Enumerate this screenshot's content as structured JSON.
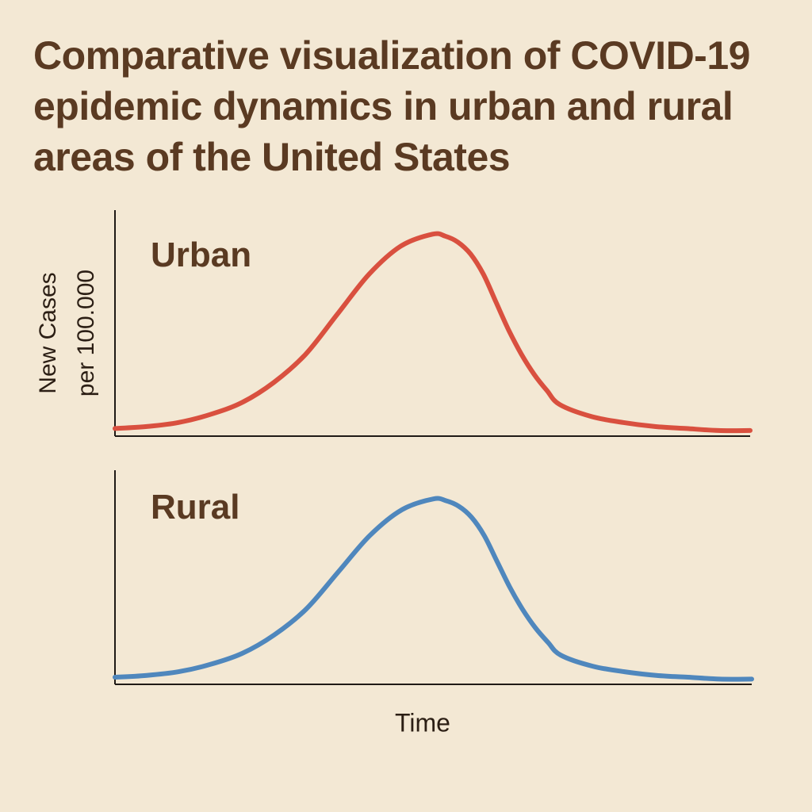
{
  "chart_data": {
    "type": "line",
    "title": "Comparative visualization of COVID-19 epidemic dynamics in urban and rural areas of the United States",
    "ylabel": "New Cases\nper 100.000",
    "xlabel": "Time",
    "ticks": "none",
    "grid": false,
    "panels": [
      {
        "name": "Urban",
        "color": "#d9503f",
        "x": [
          0,
          0.05,
          0.1,
          0.15,
          0.2,
          0.25,
          0.3,
          0.35,
          0.4,
          0.45,
          0.5,
          0.52,
          0.54,
          0.56,
          0.58,
          0.6,
          0.62,
          0.64,
          0.66,
          0.68,
          0.7,
          0.75,
          0.8,
          0.85,
          0.9,
          0.95,
          1.0
        ],
        "y": [
          0.03,
          0.04,
          0.06,
          0.1,
          0.16,
          0.26,
          0.4,
          0.6,
          0.8,
          0.94,
          1.0,
          0.99,
          0.96,
          0.9,
          0.8,
          0.66,
          0.52,
          0.4,
          0.3,
          0.22,
          0.15,
          0.09,
          0.06,
          0.04,
          0.03,
          0.02,
          0.02
        ],
        "ylim": [
          0,
          1.1
        ]
      },
      {
        "name": "Rural",
        "color": "#4f87bd",
        "x": [
          0,
          0.05,
          0.1,
          0.15,
          0.2,
          0.25,
          0.3,
          0.35,
          0.4,
          0.45,
          0.5,
          0.52,
          0.54,
          0.56,
          0.58,
          0.6,
          0.62,
          0.64,
          0.66,
          0.68,
          0.7,
          0.75,
          0.8,
          0.85,
          0.9,
          0.95,
          1.0
        ],
        "y": [
          0.03,
          0.04,
          0.06,
          0.1,
          0.16,
          0.26,
          0.4,
          0.6,
          0.8,
          0.94,
          1.0,
          0.99,
          0.96,
          0.9,
          0.8,
          0.66,
          0.52,
          0.4,
          0.3,
          0.22,
          0.15,
          0.09,
          0.06,
          0.04,
          0.03,
          0.02,
          0.02
        ],
        "ylim": [
          0,
          1.1
        ]
      }
    ]
  }
}
